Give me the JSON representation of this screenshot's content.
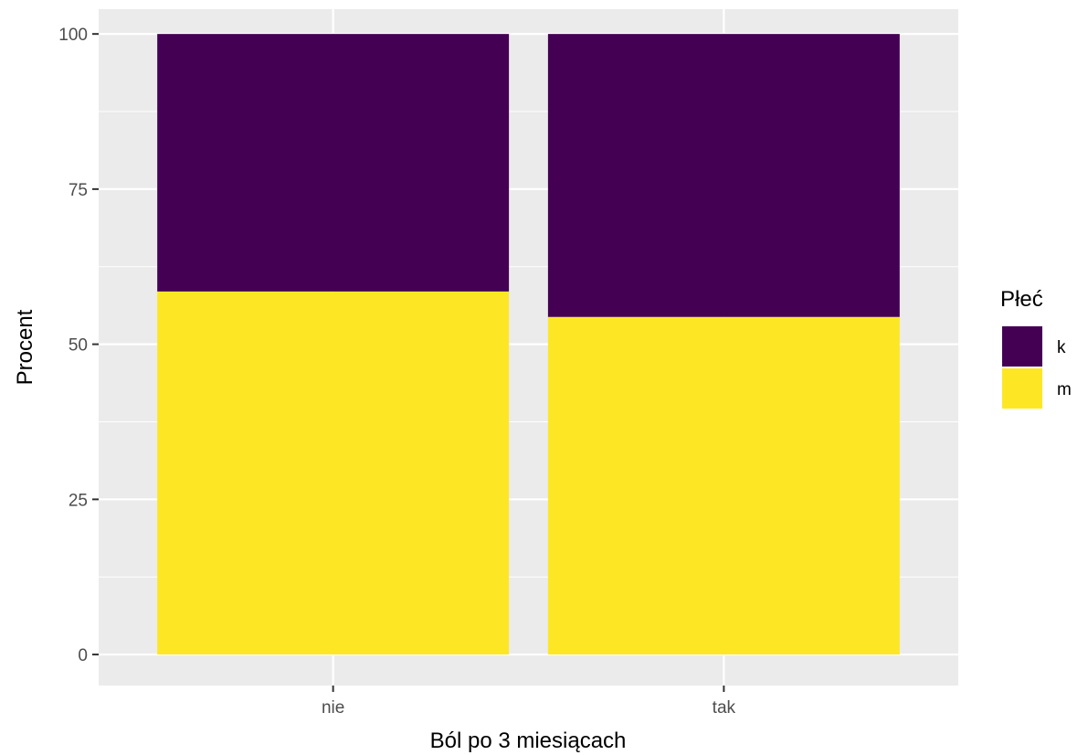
{
  "chart_data": {
    "type": "bar",
    "stacked": true,
    "categories": [
      "nie",
      "tak"
    ],
    "series": [
      {
        "name": "k",
        "values": [
          41.5,
          45.6
        ],
        "color": "#440154"
      },
      {
        "name": "m",
        "values": [
          58.5,
          54.4
        ],
        "color": "#FDE725"
      }
    ],
    "xlabel": "Ból po 3 miesiącach",
    "ylabel": "Procent",
    "ylim": [
      -5,
      104
    ],
    "yticks": [
      0,
      25,
      50,
      75,
      100
    ],
    "ytick_labels": [
      "0",
      "25",
      "50",
      "75",
      "100"
    ],
    "legend": {
      "title": "Płeć",
      "position": "right",
      "entries": [
        "k",
        "m"
      ]
    },
    "grid": true,
    "panel_background": "#EBEBEB",
    "grid_color": "#FFFFFF"
  }
}
